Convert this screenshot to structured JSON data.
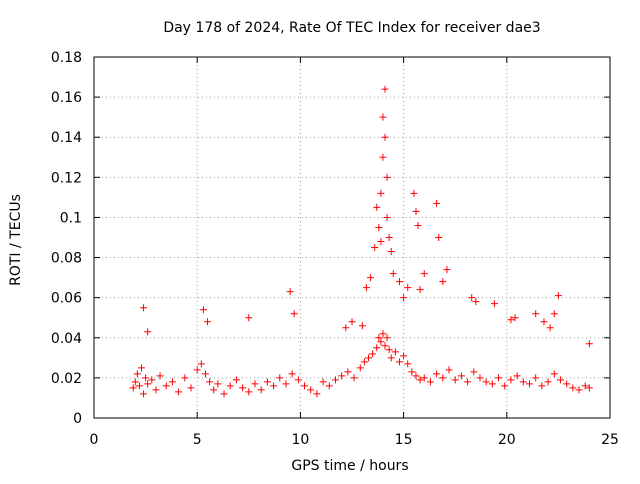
{
  "chart_data": {
    "type": "scatter",
    "title": "Day 178 of 2024, Rate Of TEC Index for receiver dae3",
    "xlabel": "GPS time / hours",
    "ylabel": "ROTI / TECUs",
    "xlim": [
      0,
      25
    ],
    "ylim": [
      0,
      0.18
    ],
    "xticks": [
      0,
      5,
      10,
      15,
      20,
      25
    ],
    "yticks": [
      0,
      0.02,
      0.04,
      0.06,
      0.08,
      0.1,
      0.12,
      0.14,
      0.16,
      0.18
    ],
    "xtick_labels": [
      "0",
      "5",
      "10",
      "15",
      "20",
      "25"
    ],
    "ytick_labels": [
      "0",
      "0.02",
      "0.04",
      "0.06",
      "0.08",
      "0.1",
      "0.12",
      "0.14",
      "0.16",
      "0.18"
    ],
    "grid": true,
    "marker": "+",
    "color": "#ff0000",
    "series": [
      {
        "x": [
          1.9,
          2.0,
          2.1,
          2.2,
          2.3,
          2.4,
          2.5,
          2.6,
          2.8,
          3.0,
          3.2,
          3.5,
          3.8,
          4.1,
          4.4,
          4.7,
          5.0,
          5.2,
          5.4,
          5.6,
          5.8,
          6.0,
          6.3,
          6.6,
          6.9,
          7.2,
          7.5,
          7.8,
          8.1,
          8.4,
          8.7,
          9.0,
          9.3,
          9.6,
          9.9,
          10.2,
          10.5,
          10.8,
          11.1,
          11.4,
          11.7,
          12.0,
          12.3,
          12.6,
          12.9,
          13.1,
          13.3,
          13.5,
          13.7,
          13.8,
          13.9,
          14.0,
          14.1,
          14.2,
          14.3,
          14.4,
          14.6,
          14.8,
          15.0,
          15.2,
          15.4,
          15.6,
          15.8,
          16.0,
          16.3,
          16.6,
          16.9,
          17.2,
          17.5,
          17.8,
          18.1,
          18.4,
          18.7,
          19.0,
          19.3,
          19.6,
          19.9,
          20.2,
          20.5,
          20.8,
          21.1,
          21.4,
          21.7,
          22.0,
          22.3,
          22.6,
          22.9,
          23.2,
          23.5,
          23.8,
          24.0,
          2.4,
          2.6,
          5.3,
          5.5,
          7.5,
          9.5,
          9.7,
          12.2,
          12.5,
          13.0,
          13.2,
          13.4,
          13.6,
          13.7,
          13.8,
          13.9,
          13.9,
          14.0,
          14.0,
          14.1,
          14.1,
          14.2,
          14.2,
          14.3,
          14.4,
          14.5,
          14.8,
          15.0,
          15.2,
          15.5,
          15.6,
          15.7,
          15.8,
          16.0,
          16.6,
          16.7,
          16.9,
          17.1,
          18.3,
          18.5,
          19.4,
          20.2,
          20.4,
          21.4,
          21.8,
          22.1,
          22.3,
          22.5,
          24.0
        ],
        "y": [
          0.015,
          0.018,
          0.022,
          0.016,
          0.025,
          0.012,
          0.02,
          0.017,
          0.019,
          0.014,
          0.021,
          0.016,
          0.018,
          0.013,
          0.02,
          0.015,
          0.024,
          0.027,
          0.022,
          0.018,
          0.014,
          0.017,
          0.012,
          0.016,
          0.019,
          0.015,
          0.013,
          0.017,
          0.014,
          0.018,
          0.016,
          0.02,
          0.017,
          0.022,
          0.019,
          0.016,
          0.014,
          0.012,
          0.018,
          0.016,
          0.019,
          0.021,
          0.023,
          0.02,
          0.025,
          0.028,
          0.03,
          0.032,
          0.035,
          0.04,
          0.038,
          0.042,
          0.036,
          0.04,
          0.034,
          0.03,
          0.033,
          0.028,
          0.031,
          0.027,
          0.023,
          0.021,
          0.019,
          0.02,
          0.018,
          0.022,
          0.02,
          0.024,
          0.019,
          0.021,
          0.018,
          0.023,
          0.02,
          0.018,
          0.017,
          0.02,
          0.016,
          0.019,
          0.021,
          0.018,
          0.017,
          0.02,
          0.016,
          0.018,
          0.022,
          0.019,
          0.017,
          0.015,
          0.014,
          0.016,
          0.015,
          0.055,
          0.043,
          0.054,
          0.048,
          0.05,
          0.063,
          0.052,
          0.045,
          0.048,
          0.046,
          0.065,
          0.07,
          0.085,
          0.105,
          0.095,
          0.112,
          0.088,
          0.13,
          0.15,
          0.164,
          0.14,
          0.12,
          0.1,
          0.09,
          0.083,
          0.072,
          0.068,
          0.06,
          0.065,
          0.112,
          0.103,
          0.096,
          0.064,
          0.072,
          0.107,
          0.09,
          0.068,
          0.074,
          0.06,
          0.058,
          0.057,
          0.049,
          0.05,
          0.052,
          0.048,
          0.045,
          0.052,
          0.061,
          0.037
        ]
      }
    ]
  }
}
